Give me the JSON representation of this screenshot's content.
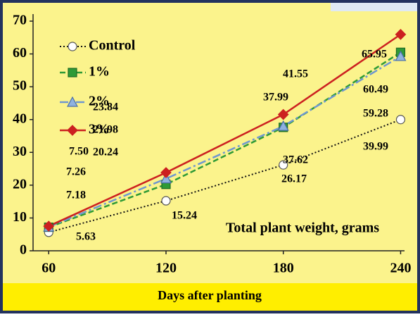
{
  "chart_data": {
    "type": "line",
    "x": [
      60,
      120,
      180,
      240
    ],
    "xlim": [
      52,
      242
    ],
    "xticks": [
      60,
      120,
      180,
      240
    ],
    "ylim": [
      0,
      70
    ],
    "yticks": [
      0,
      10,
      20,
      30,
      40,
      50,
      60,
      70
    ],
    "xlabel": "Days after planting",
    "annotation": "Total plant weight, grams",
    "legend": "upper left",
    "series": [
      {
        "name": "Control",
        "color": "#111111",
        "values": [
          5.63,
          15.24,
          26.17,
          39.99
        ],
        "value_labels": [
          "5.63",
          "15.24",
          "26.17",
          "39.99"
        ]
      },
      {
        "name": "1%",
        "color": "#2e9a36",
        "values": [
          7.18,
          20.24,
          37.62,
          60.49
        ],
        "value_labels": [
          "7.18",
          "20.24",
          "37.62",
          "60.49"
        ]
      },
      {
        "name": "2%",
        "color": "#6f97d0",
        "values": [
          7.26,
          21.98,
          37.99,
          59.28
        ],
        "value_labels": [
          "7.26",
          "21.98",
          "37.99",
          "59.28"
        ]
      },
      {
        "name": "3%",
        "color": "#cc2020",
        "values": [
          7.5,
          23.84,
          41.55,
          65.95
        ],
        "value_labels": [
          "7.50",
          "23.84",
          "41.55",
          "65.95"
        ]
      }
    ]
  }
}
